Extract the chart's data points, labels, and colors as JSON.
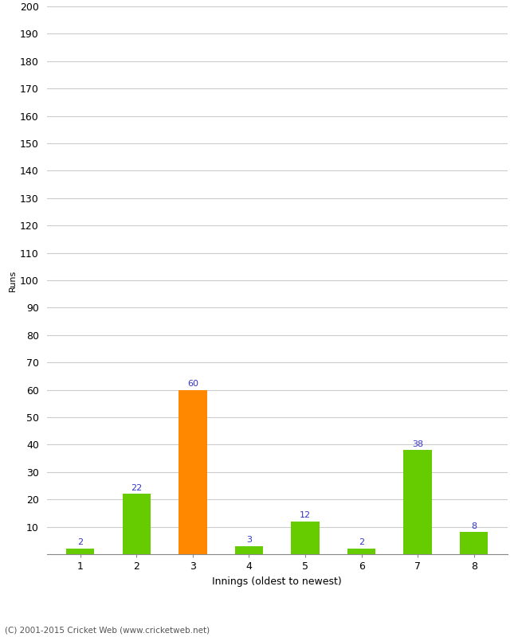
{
  "xlabel": "Innings (oldest to newest)",
  "ylabel": "Runs",
  "categories": [
    "1",
    "2",
    "3",
    "4",
    "5",
    "6",
    "7",
    "8"
  ],
  "values": [
    2,
    22,
    60,
    3,
    12,
    2,
    38,
    8
  ],
  "bar_colors": [
    "#66cc00",
    "#66cc00",
    "#ff8800",
    "#66cc00",
    "#66cc00",
    "#66cc00",
    "#66cc00",
    "#66cc00"
  ],
  "label_color": "#3333cc",
  "ylim": [
    0,
    200
  ],
  "yticks": [
    0,
    10,
    20,
    30,
    40,
    50,
    60,
    70,
    80,
    90,
    100,
    110,
    120,
    130,
    140,
    150,
    160,
    170,
    180,
    190,
    200
  ],
  "background_color": "#ffffff",
  "grid_color": "#cccccc",
  "footer": "(C) 2001-2015 Cricket Web (www.cricketweb.net)",
  "bar_width": 0.5,
  "label_fontsize": 8,
  "tick_fontsize": 9,
  "ylabel_fontsize": 8,
  "xlabel_fontsize": 9
}
